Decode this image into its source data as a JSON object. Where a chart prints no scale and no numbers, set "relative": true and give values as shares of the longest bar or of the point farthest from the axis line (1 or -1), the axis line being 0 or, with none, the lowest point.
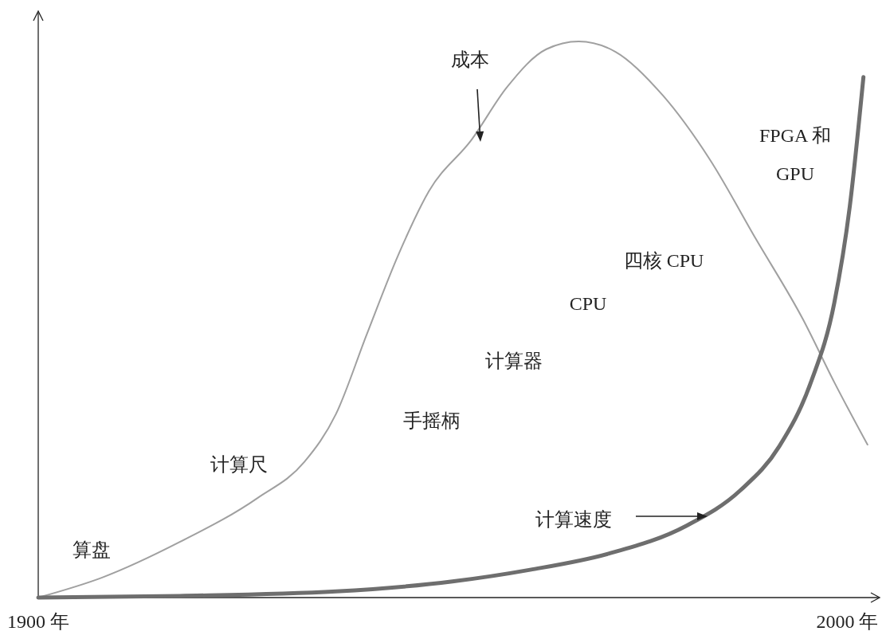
{
  "chart_data": {
    "type": "line",
    "relative": true,
    "xlim": [
      1900,
      2004
    ],
    "xticks": [
      {
        "value": 1900,
        "label": "1900 年"
      },
      {
        "value": 2000,
        "label": "2000 年"
      }
    ],
    "series": [
      {
        "color": "#a0a0a0",
        "x": [
          1900,
          1907.9,
          1917.5,
          1927.1,
          1932.9,
          1936.8,
          1940.6,
          1944.5,
          1948.3,
          1953.6,
          1957.9,
          1962.8,
          1966.8,
          1971.4,
          1977.2,
          1983,
          1988.7,
          1994.5,
          1998.4,
          2002.5
        ],
        "values": [
          0,
          0.036,
          0.1,
          0.179,
          0.244,
          0.33,
          0.473,
          0.616,
          0.731,
          0.824,
          0.917,
          0.986,
          1,
          0.981,
          0.903,
          0.788,
          0.645,
          0.501,
          0.387,
          0.275
        ]
      },
      {
        "color": "#6e6e6e",
        "x": [
          1900,
          1917.5,
          1936.8,
          1951.2,
          1960.8,
          1970.5,
          1980.1,
          1986.8,
          1991.6,
          1995.5,
          1998.4,
          2000.3,
          2002
        ],
        "values": [
          0,
          0.003,
          0.011,
          0.029,
          0.05,
          0.079,
          0.129,
          0.193,
          0.272,
          0.387,
          0.53,
          0.702,
          0.936
        ]
      }
    ],
    "annotations": [
      "算盘",
      "计算尺",
      "手摇柄",
      "计算器",
      "CPU",
      "四核 CPU",
      "FPGA 和 GPU",
      "成本",
      "计算速度"
    ]
  }
}
